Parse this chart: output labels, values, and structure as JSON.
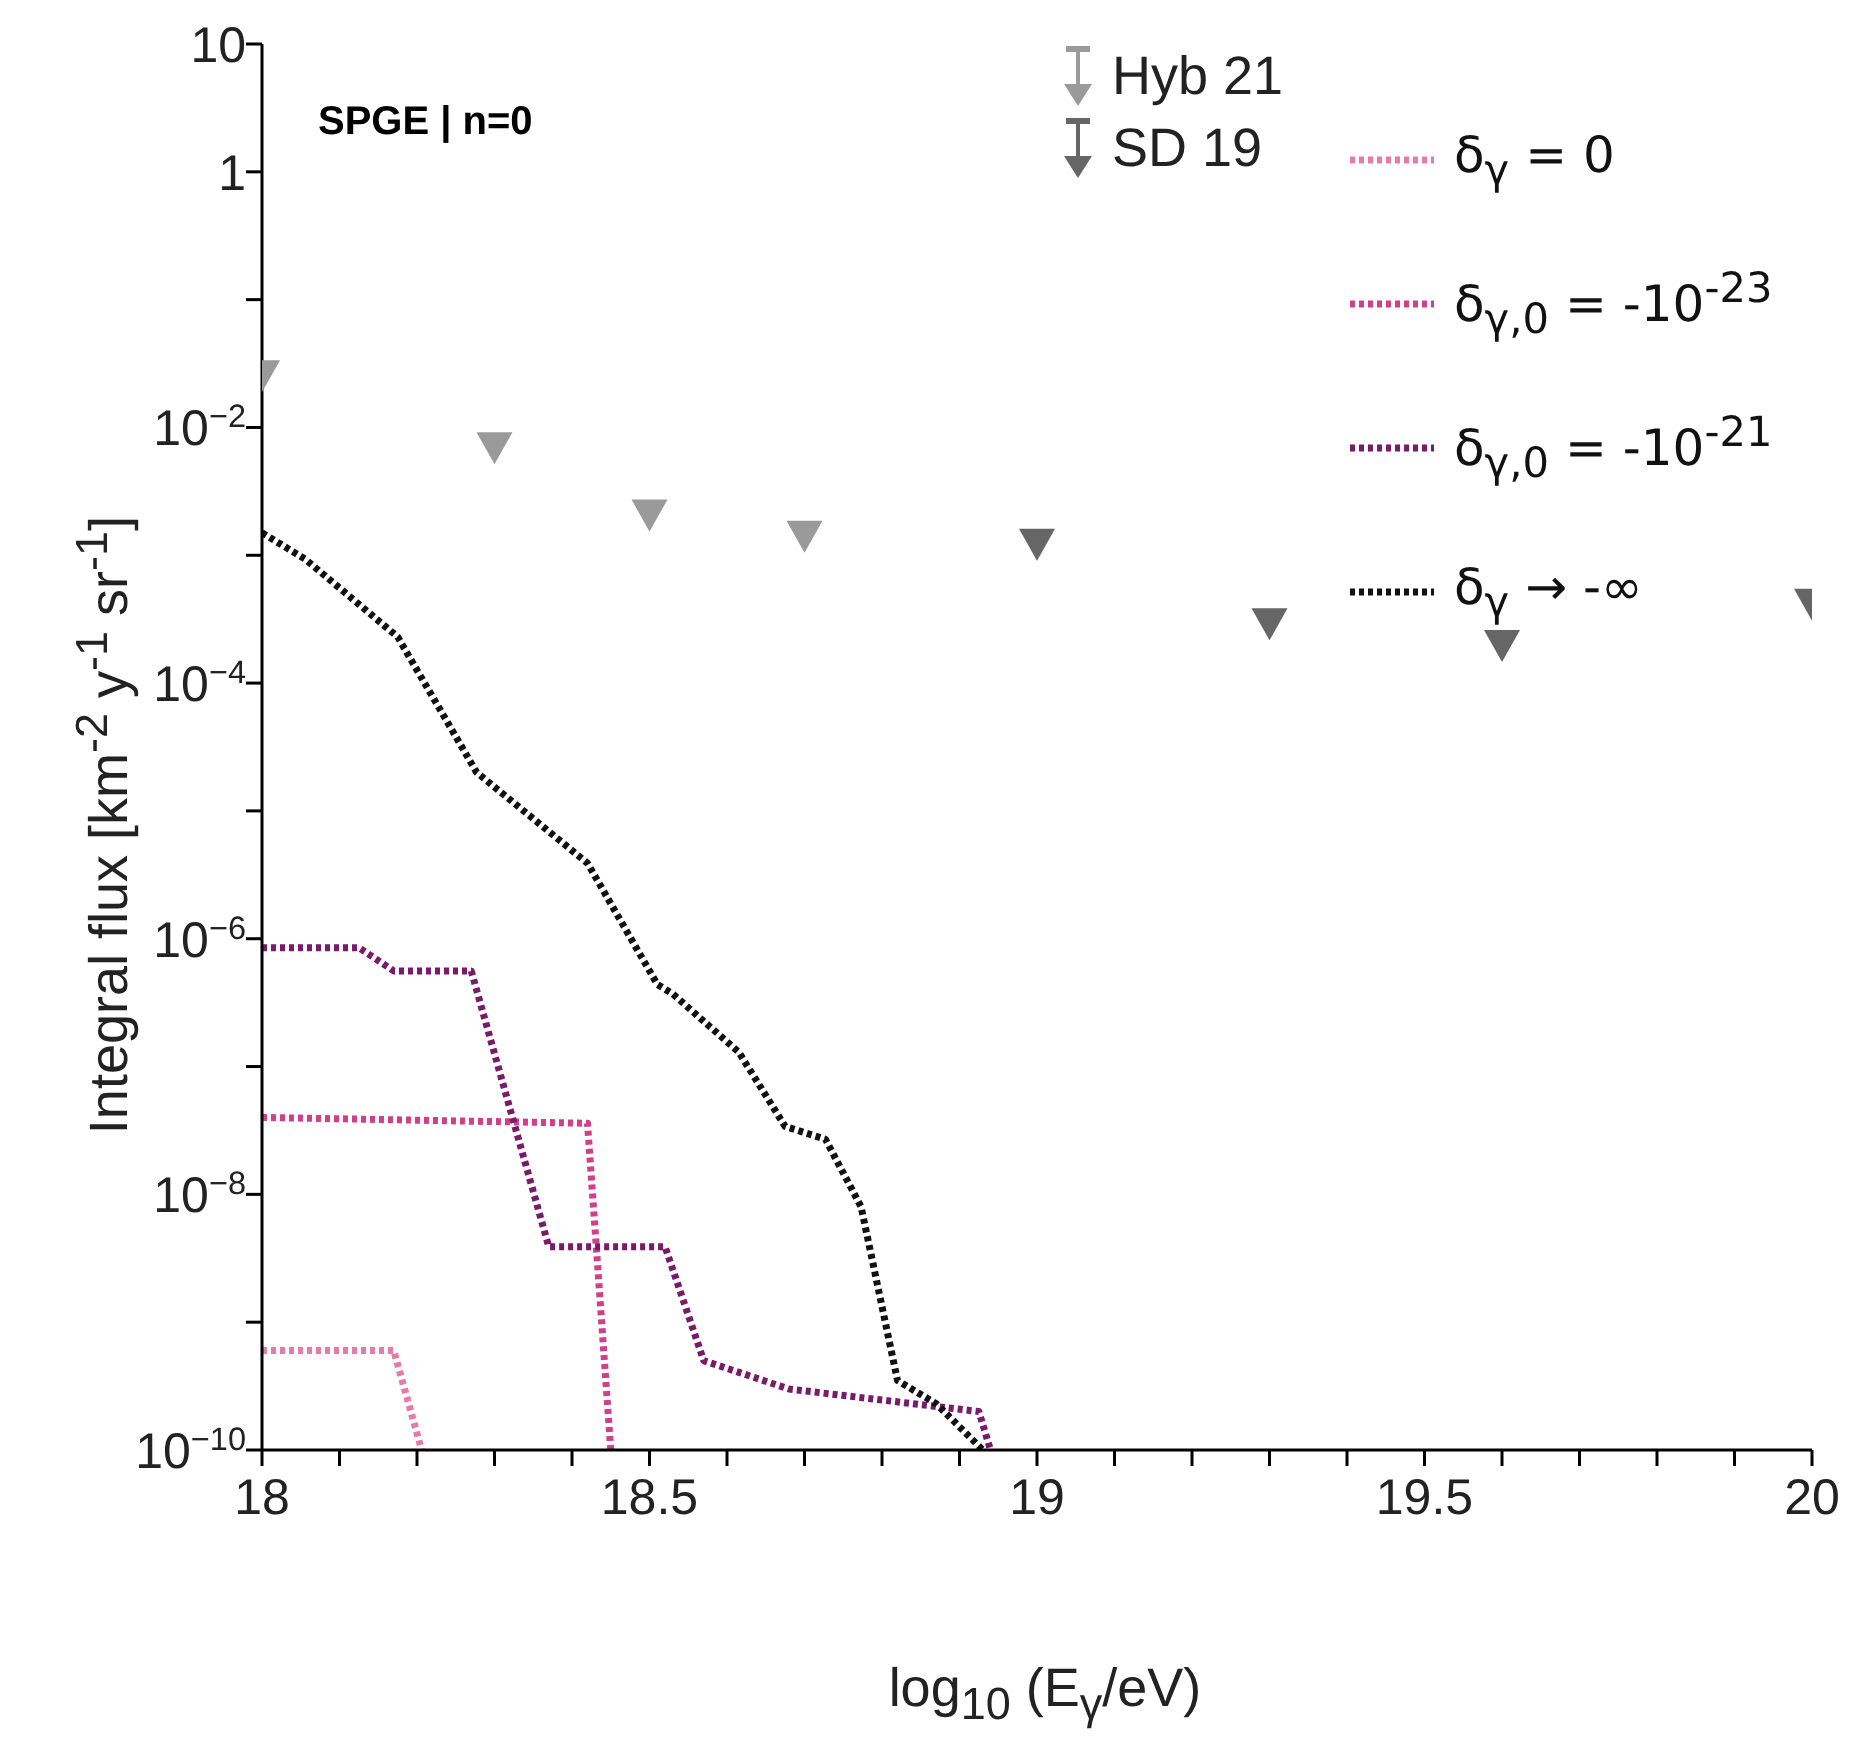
{
  "chart_data": {
    "type": "line",
    "title": "SPGE | n=0",
    "xlabel": "log$_{10}$ (E$_{γ}$/eV)",
    "ylabel": "Integral flux [km$^{-2}$ y$^{-1}$ sr$^{-1}$]",
    "log": "y",
    "xlim": [
      18,
      20
    ],
    "ylim": [
      1e-10,
      10
    ],
    "xticks": [
      18,
      {
        "value": 18.1,
        "label": null
      },
      {
        "value": 18.2,
        "label": null
      },
      {
        "value": 18.3,
        "label": null
      },
      {
        "value": 18.4,
        "label": null
      },
      18.5,
      {
        "value": 18.6,
        "label": null
      },
      {
        "value": 18.7,
        "label": null
      },
      {
        "value": 18.8,
        "label": null
      },
      {
        "value": 18.9,
        "label": null
      },
      19,
      {
        "value": 19.1,
        "label": null
      },
      {
        "value": 19.2,
        "label": null
      },
      {
        "value": 19.3,
        "label": null
      },
      {
        "value": 19.4,
        "label": null
      },
      19.5,
      {
        "value": 19.6,
        "label": null
      },
      {
        "value": 19.7,
        "label": null
      },
      {
        "value": 19.8,
        "label": null
      },
      {
        "value": 19.9,
        "label": null
      },
      20
    ],
    "yticks": [
      {
        "value": 1e-10,
        "label": "10$^{−10}$"
      },
      {
        "value": 1e-09,
        "label": null
      },
      {
        "value": 1e-08,
        "label": "10$^{−8}$"
      },
      {
        "value": 1e-07,
        "label": null
      },
      {
        "value": 1e-06,
        "label": "10$^{−6}$"
      },
      {
        "value": 1e-05,
        "label": null
      },
      {
        "value": 0.0001,
        "label": "10$^{−4}$"
      },
      {
        "value": 0.001,
        "label": null
      },
      {
        "value": 0.01,
        "label": "10$^{−2}$"
      },
      {
        "value": 0.1,
        "label": null
      },
      1,
      10
    ],
    "grid": false,
    "legend": "top right",
    "line_style": "dotted",
    "marker": "none",
    "series": [
      {
        "name": "Hyb 21",
        "type": "scatter",
        "marker": "triangle",
        "color": "#9a9a9a",
        "x": [
          18,
          18.3,
          18.5,
          18.7
        ],
        "values": [
          0.027,
          0.0074,
          0.0022,
          0.0015
        ]
      },
      {
        "name": "SD 19",
        "type": "scatter",
        "marker": "triangle",
        "color": "#666666",
        "x": [
          19,
          19.3,
          19.6,
          20
        ],
        "values": [
          0.0013,
          0.00031,
          0.00021,
          0.00044
        ]
      },
      {
        "name": "δ$_{γ}$ = 0",
        "color": "#e87aa8",
        "x": [
          18,
          18.17,
          18.206
        ],
        "values": [
          6e-10,
          6e-10,
          1e-10
        ]
      },
      {
        "name": "δ$_{γ,0}$ = -10$^{-23}$",
        "color": "#d0408a",
        "x": [
          18,
          18.42,
          18.45
        ],
        "values": [
          4e-08,
          3.6e-08,
          1e-10
        ]
      },
      {
        "name": "δ$_{γ,0}$ = -10$^{-21}$",
        "color": "#7a1a6a",
        "x": [
          18,
          18.125,
          18.17,
          18.27,
          18.37,
          18.52,
          18.57,
          18.68,
          18.925,
          18.94
        ],
        "values": [
          8.5e-07,
          8.5e-07,
          5.6e-07,
          5.6e-07,
          3.9e-09,
          3.9e-09,
          5e-10,
          3e-10,
          2e-10,
          1e-10
        ]
      },
      {
        "name": "δ$_{γ}$ → -∞",
        "color": "#111111",
        "x": [
          18,
          18.056,
          18.175,
          18.277,
          18.42,
          18.51,
          18.53,
          18.615,
          18.675,
          18.727,
          18.773,
          18.82,
          18.87,
          18.917,
          18.93
        ],
        "values": [
          0.0015,
          0.00093,
          0.00023,
          2e-05,
          3.9e-06,
          4.4e-07,
          3.7e-07,
          1.3e-07,
          3.4e-08,
          2.7e-08,
          8e-09,
          3.5e-10,
          2.3e-10,
          1.2e-10,
          1e-10
        ]
      }
    ]
  }
}
